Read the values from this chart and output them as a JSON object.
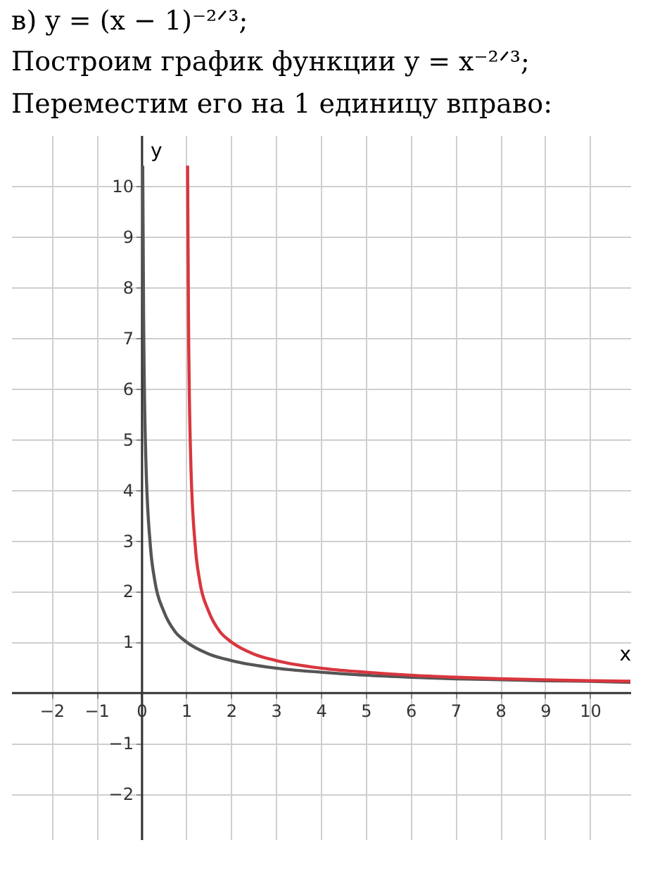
{
  "chart_data": {
    "type": "line",
    "title": "в) y = (x − 1)⁻²ᐟ³;",
    "subtitle": "Построим график функции y = x⁻²ᐟ³;",
    "annotations": [
      "Переместим его на 1 единицу вправо:"
    ],
    "xlabel": "x",
    "ylabel": "y",
    "xlim": [
      -2.9,
      10.9
    ],
    "ylim": [
      -2.9,
      11
    ],
    "xticks": [
      -2,
      -1,
      0,
      1,
      2,
      3,
      4,
      5,
      6,
      7,
      8,
      9,
      10
    ],
    "yticks": [
      -2,
      -1,
      1,
      2,
      3,
      4,
      5,
      6,
      7,
      8,
      9,
      10
    ],
    "grid": true,
    "series": [
      {
        "color": "#555555",
        "x": [
          0.03,
          0.05,
          0.1,
          0.2,
          0.3,
          0.5,
          0.75,
          1,
          1.5,
          2,
          3,
          4,
          5,
          6,
          7,
          8,
          9,
          10,
          10.9
        ],
        "values": [
          10.4,
          7.4,
          4.6,
          2.9,
          2.2,
          1.6,
          1.2,
          1,
          0.76,
          0.63,
          0.48,
          0.4,
          0.34,
          0.3,
          0.27,
          0.25,
          0.23,
          0.22,
          0.2
        ]
      },
      {
        "color": "#d9363e",
        "x": [
          1.03,
          1.05,
          1.1,
          1.2,
          1.3,
          1.5,
          1.75,
          2,
          2.5,
          3,
          4,
          5,
          6,
          7,
          8,
          9,
          10,
          10.9
        ],
        "values": [
          10.4,
          7.4,
          4.6,
          2.9,
          2.2,
          1.6,
          1.2,
          1,
          0.76,
          0.63,
          0.48,
          0.4,
          0.34,
          0.3,
          0.27,
          0.25,
          0.23,
          0.22
        ]
      }
    ]
  }
}
